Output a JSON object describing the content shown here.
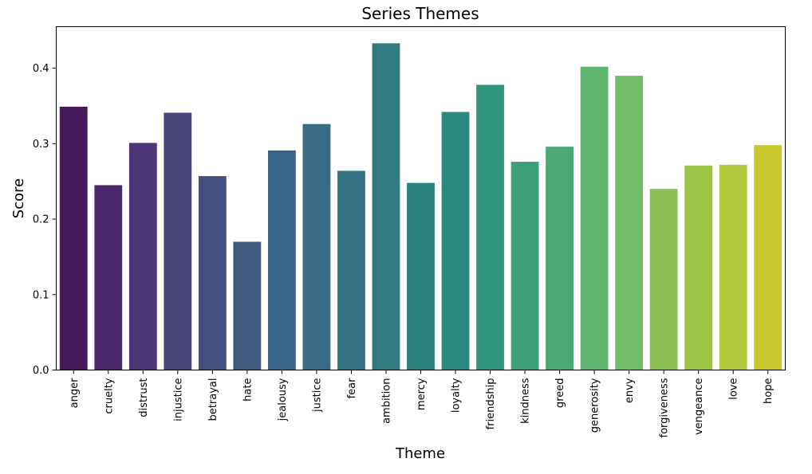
{
  "chart_data": {
    "type": "bar",
    "title": "Series Themes",
    "xlabel": "Theme",
    "ylabel": "Score",
    "ylim": [
      0,
      0.455
    ],
    "yticks": [
      0.0,
      0.1,
      0.2,
      0.3,
      0.4
    ],
    "ytick_labels": [
      "0.0",
      "0.1",
      "0.2",
      "0.3",
      "0.4"
    ],
    "grid": false,
    "colormap": "viridis",
    "categories": [
      "anger",
      "cruelty",
      "distrust",
      "injustice",
      "betrayal",
      "hate",
      "jealousy",
      "justice",
      "fear",
      "ambition",
      "mercy",
      "loyalty",
      "friendship",
      "kindness",
      "greed",
      "generosity",
      "envy",
      "forgiveness",
      "vengeance",
      "love",
      "hope"
    ],
    "values": [
      0.349,
      0.245,
      0.301,
      0.341,
      0.257,
      0.17,
      0.291,
      0.326,
      0.264,
      0.433,
      0.248,
      0.342,
      0.378,
      0.276,
      0.296,
      0.402,
      0.39,
      0.24,
      0.271,
      0.272,
      0.298
    ],
    "colors": [
      "#451a5b",
      "#4a2a6c",
      "#4c3678",
      "#4a4679",
      "#46507e",
      "#405b80",
      "#3a6488",
      "#376b84",
      "#337281",
      "#317a80",
      "#2d8280",
      "#2b8a7f",
      "#30977c",
      "#3da07a",
      "#4aa977",
      "#5fb46f",
      "#72bd68",
      "#8ac152",
      "#9dc548",
      "#b0c83b",
      "#c8c92c"
    ]
  }
}
